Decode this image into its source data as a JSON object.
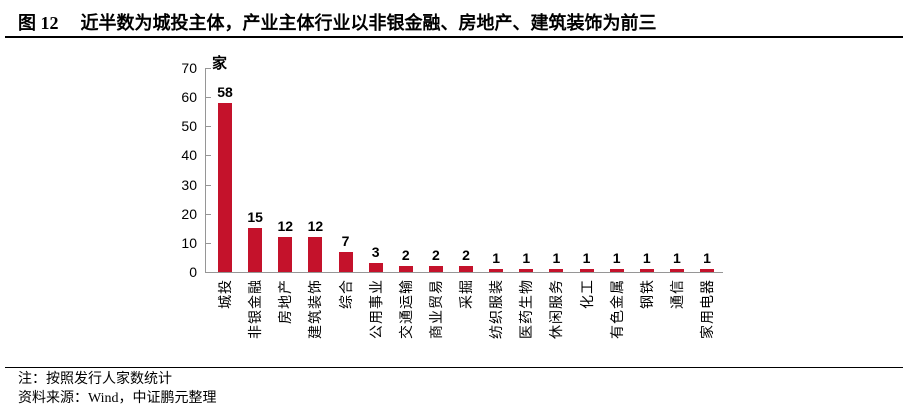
{
  "header": {
    "figure_label": "图 12",
    "title": "近半数为城投主体，产业主体行业以非银金融、房地产、建筑装饰为前三"
  },
  "chart_data": {
    "type": "bar",
    "title": "",
    "unit_label": "家",
    "categories": [
      "城投",
      "非银金融",
      "房地产",
      "建筑装饰",
      "综合",
      "公用事业",
      "交通运输",
      "商业贸易",
      "采掘",
      "纺织服装",
      "医药生物",
      "休闲服务",
      "化工",
      "有色金属",
      "钢铁",
      "通信",
      "家用电器"
    ],
    "values": [
      58,
      15,
      12,
      12,
      7,
      3,
      2,
      2,
      2,
      1,
      1,
      1,
      1,
      1,
      1,
      1,
      1
    ],
    "ylim": [
      0,
      70
    ],
    "y_ticks": [
      0,
      10,
      20,
      30,
      40,
      50,
      60,
      70
    ],
    "xlabel": "",
    "ylabel": "家",
    "grid": false,
    "legend": "none",
    "x_label_rotation": 90,
    "data_labels_shown": true,
    "bar_color": "#C4122B",
    "axis_color": "#969696",
    "text_color": "#000000"
  },
  "footer": {
    "note": "注：按照发行人家数统计",
    "source": "资料来源：Wind，中证鹏元整理"
  }
}
